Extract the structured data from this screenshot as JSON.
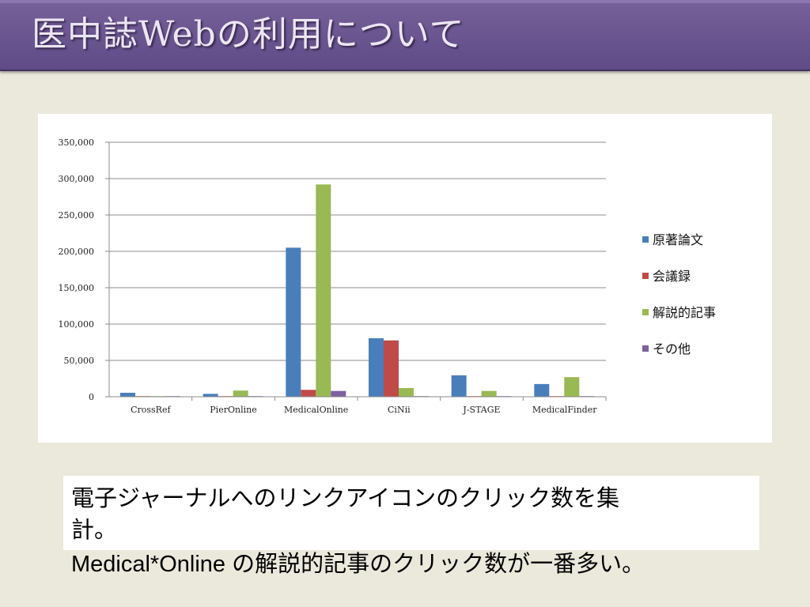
{
  "slide": {
    "title": "医中誌Webの利用について",
    "note_line1": "電子ジャーナルへのリンクアイコンのクリック数を集",
    "note_line2": "計。",
    "note_line3": "Medical*Online の解説的記事のクリック数が一番多い。"
  },
  "chart_data": {
    "type": "bar",
    "categories": [
      "CrossRef",
      "PierOnline",
      "MedicalOnline",
      "CiNii",
      "J-STAGE",
      "MedicalFinder"
    ],
    "series": [
      {
        "name": "原著論文",
        "color": "#4a7ebb",
        "values": [
          5500,
          4000,
          205000,
          80500,
          29500,
          17500
        ]
      },
      {
        "name": "会議録",
        "color": "#be4b48",
        "values": [
          300,
          100,
          9500,
          77500,
          200,
          300
        ]
      },
      {
        "name": "解説的記事",
        "color": "#98b954",
        "values": [
          600,
          8500,
          292000,
          12000,
          8000,
          27000
        ]
      },
      {
        "name": "その他",
        "color": "#7d60a0",
        "values": [
          100,
          100,
          8000,
          800,
          100,
          800
        ]
      }
    ],
    "ylim": [
      0,
      350000
    ],
    "yticks": [
      "0",
      "50,000",
      "100,000",
      "150,000",
      "200,000",
      "250,000",
      "300,000",
      "350,000"
    ],
    "grid": true,
    "legend_position": "right"
  }
}
